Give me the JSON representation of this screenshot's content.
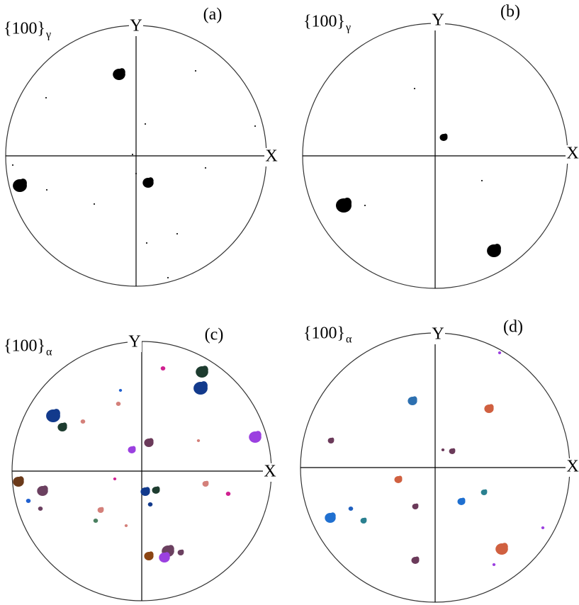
{
  "panels": [
    {
      "label": "(a)",
      "title": "{100}",
      "subscript": "γ",
      "y_axis": "Y",
      "x_axis": "X"
    },
    {
      "label": "(b)",
      "title": "{100}",
      "subscript": "γ",
      "y_axis": "Y",
      "x_axis": "X"
    },
    {
      "label": "(c)",
      "title": "{100}",
      "subscript": "α",
      "y_axis": "Y",
      "x_axis": "X"
    },
    {
      "label": "(d)",
      "title": "{100}",
      "subscript": "α",
      "y_axis": "Y",
      "x_axis": "X"
    }
  ]
}
